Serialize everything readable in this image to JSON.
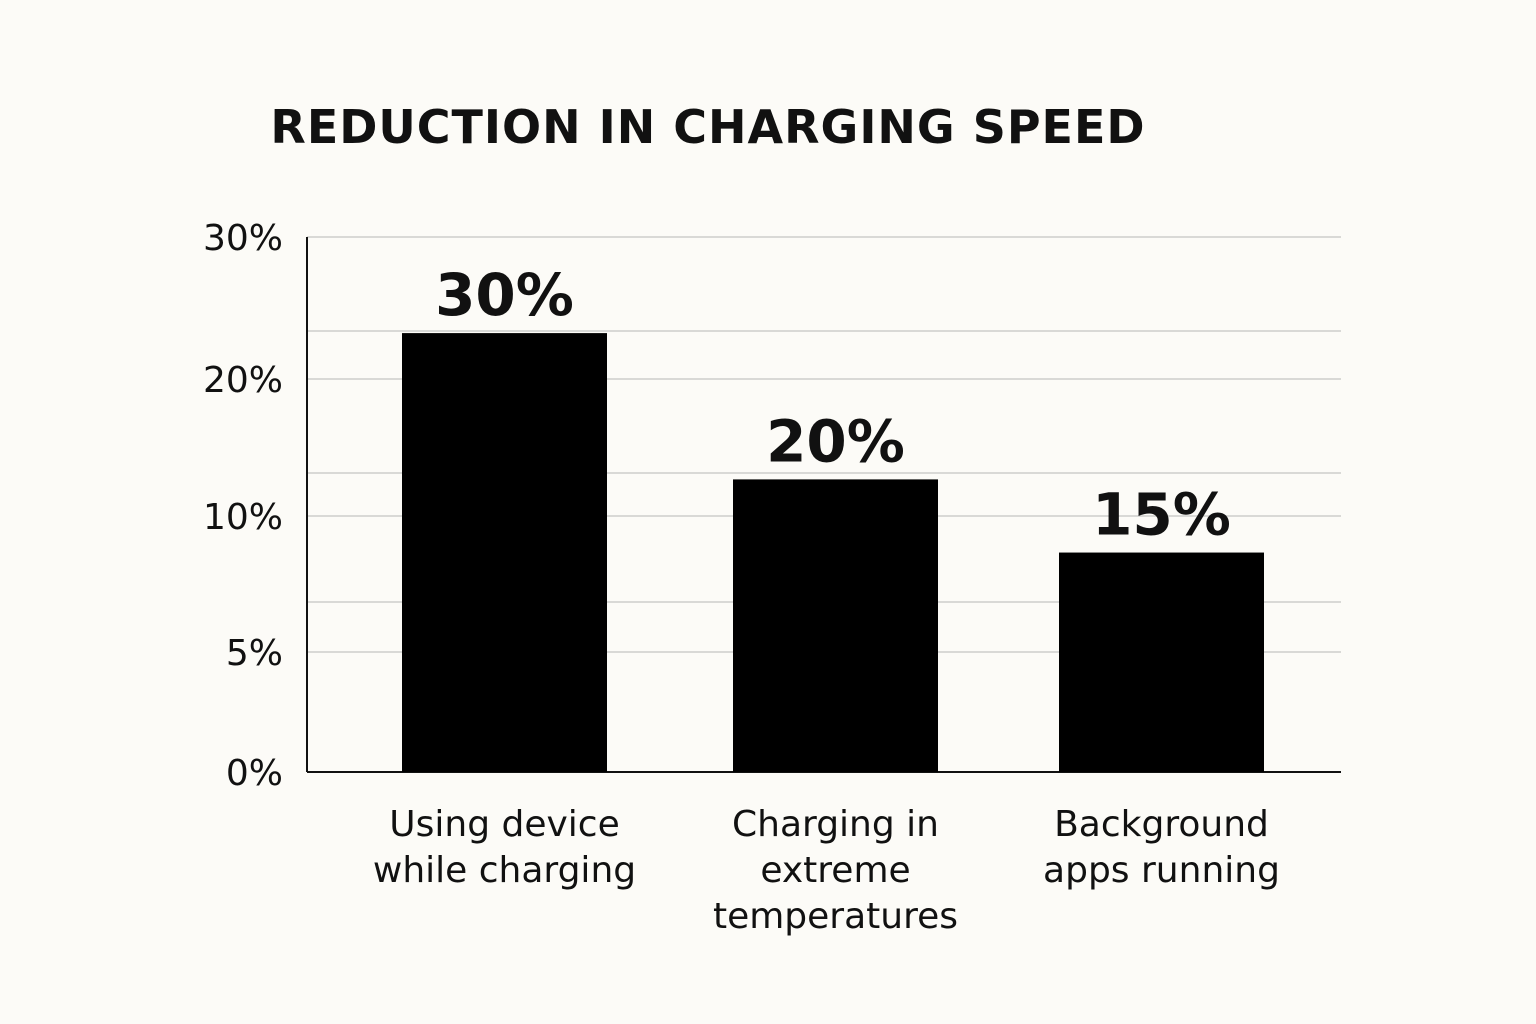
{
  "chart_data": {
    "type": "bar",
    "title": "REDUCTION IN CHARGING SPEED",
    "categories": [
      "Using device while charging",
      "Charging in extreme temperatures",
      "Background apps running"
    ],
    "category_lines": [
      [
        "Using device",
        "while charging"
      ],
      [
        "Charging in",
        "extreme",
        "temperatures"
      ],
      [
        "Background",
        "apps running"
      ]
    ],
    "values": [
      30,
      20,
      15
    ],
    "data_labels": [
      "30%",
      "20%",
      "15%"
    ],
    "y_ticks": [
      "0%",
      "5%",
      "10%",
      "20%",
      "30%"
    ],
    "xlabel": "",
    "ylabel": "",
    "grid": true,
    "bar_color": "#000000",
    "background": "#fcfbf7"
  }
}
